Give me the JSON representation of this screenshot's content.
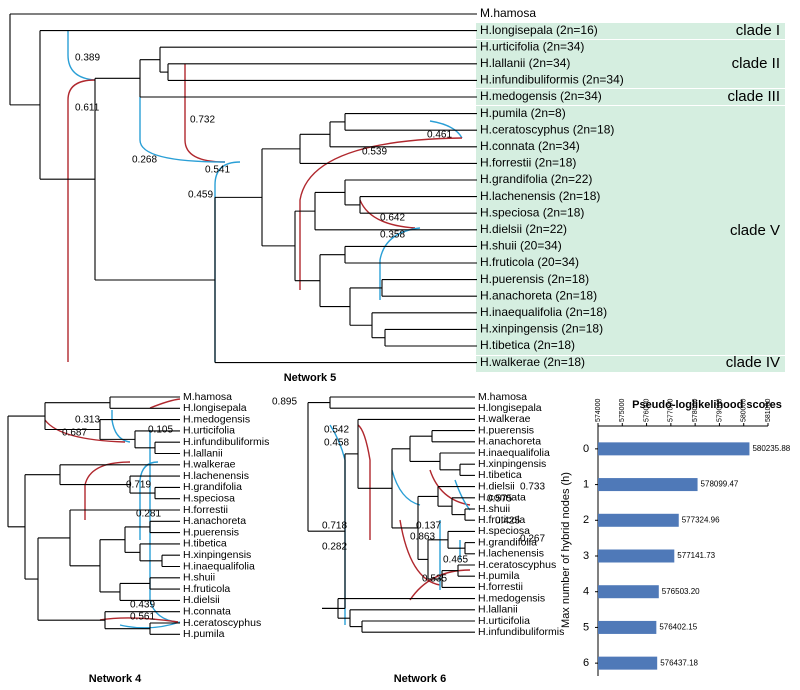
{
  "network5": {
    "title": "Network 5",
    "taxa": [
      "M.hamosa",
      "H.longisepala (2n=16)",
      "H.urticifolia (2n=34)",
      "H.lallanii (2n=34)",
      "H.infundibuliformis (2n=34)",
      "H.medogensis (2n=34)",
      "H.pumila (2n=8)",
      "H.ceratoscyphus (2n=18)",
      "H.connata (2n=34)",
      "H.forrestii (2n=18)",
      "H.grandifolia (2n=22)",
      "H.lachenensis (2n=18)",
      "H.speciosa (2n=18)",
      "H.dielsii (2n=22)",
      "H.shuii (20=34)",
      "H.fruticola (20=34)",
      "H.puerensis (2n=18)",
      "H.anachoreta (2n=18)",
      "H.inaequalifolia (2n=18)",
      "H.xinpingensis (2n=18)",
      "H.tibetica (2n=18)",
      "H.walkerae (2n=18)"
    ],
    "clades": [
      "clade I",
      "clade II",
      "clade III",
      "clade V",
      "clade IV"
    ],
    "weights": [
      "0.389",
      "0.611",
      "0.732",
      "0.268",
      "0.541",
      "0.459",
      "0.461",
      "0.539",
      "0.642",
      "0.358"
    ]
  },
  "network4": {
    "title": "Network 4",
    "taxa": [
      "M.hamosa",
      "H.longisepala",
      "H.medogensis",
      "H.urticifolia",
      "H.infundibuliformis",
      "H.lallanii",
      "H.walkerae",
      "H.lachenensis",
      "H.grandifolia",
      "H.speciosa",
      "H.forrestii",
      "H.anachoreta",
      "H.puerensis",
      "H.tibetica",
      "H.xinpingensis",
      "H.inaequalifolia",
      "H.shuii",
      "H.fruticola",
      "H.dielsii",
      "H.connata",
      "H.ceratoscyphus",
      "H.pumila"
    ],
    "weights": [
      "0.895",
      "0.313",
      "0.105",
      "0.687",
      "0.719",
      "0.281",
      "0.439",
      "0.561"
    ]
  },
  "network6": {
    "title": "Network 6",
    "taxa": [
      "M.hamosa",
      "H.longisepala",
      "H.walkerae",
      "H.puerensis",
      "H.anachoreta",
      "H.inaequalifolia",
      "H.xinpingensis",
      "H.tibetica",
      "H.dielsii",
      "H.connata",
      "H.shuii",
      "H.fruticola",
      "H.speciosa",
      "H.grandifolia",
      "H.lachenensis",
      "H.ceratoscyphus",
      "H.pumila",
      "H.forrestii",
      "H.medogensis",
      "H.lallanii",
      "H.urticifolia",
      "H.infundibuliformis"
    ],
    "weights": [
      "0.542",
      "0.458",
      "0.137",
      "0.733",
      "0.575",
      "0.425",
      "0.863",
      "0.465",
      "0.267",
      "0.535",
      "0.718",
      "0.282"
    ]
  },
  "chart_data": {
    "type": "bar",
    "title": "Pseudo-loglikelihood scores",
    "y_label": "Max number of hybrid nodes (h)",
    "categories": [
      "0",
      "1",
      "2",
      "3",
      "4",
      "5",
      "6"
    ],
    "values": [
      580235.88,
      578099.47,
      577324.96,
      577141.73,
      576503.2,
      576402.15,
      576437.18
    ],
    "value_labels": [
      "580235.88",
      "578099.47",
      "577324.96",
      "577141.73",
      "576503.20",
      "576402.15",
      "576437.18"
    ],
    "color": "#4f79b8",
    "xlim": [
      574000,
      581000
    ],
    "xticks": [
      574000,
      575000,
      576000,
      577000,
      578000,
      579000,
      580000,
      581000
    ]
  }
}
